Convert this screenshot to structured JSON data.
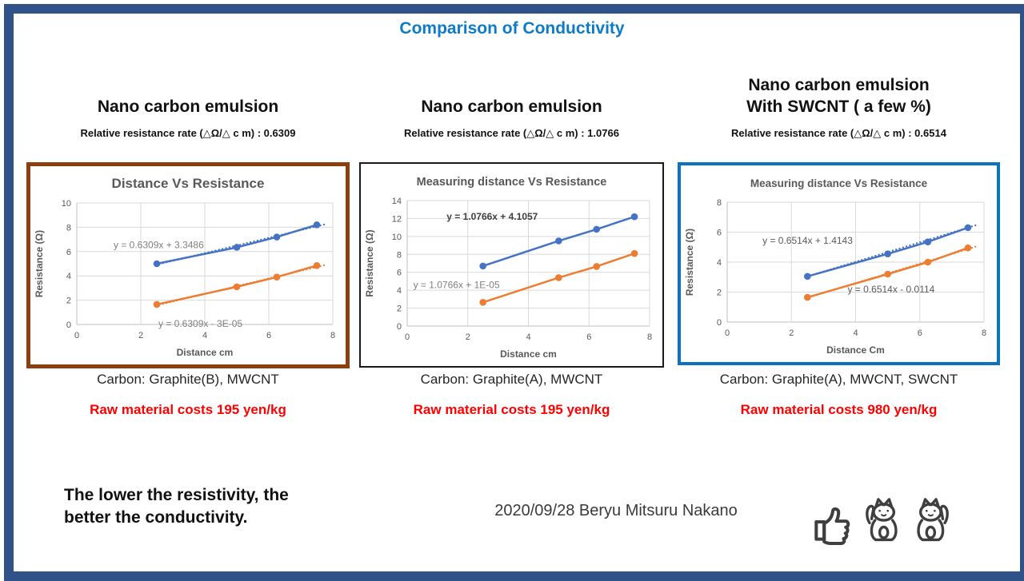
{
  "slide": {
    "title": "Comparison of Conductivity",
    "title_color": "#0D7BC7",
    "frame_color": "#2F5288"
  },
  "columns": [
    {
      "heading_line1": "Nano carbon emulsion",
      "heading_line2": "",
      "subtitle": "Relative resistance rate (△Ω/△ c m) : 0.6309",
      "carbon": "Carbon: Graphite(B), MWCNT",
      "cost": "Raw material costs 195 yen/kg",
      "box_border_color": "#8D3E0E"
    },
    {
      "heading_line1": "Nano carbon emulsion",
      "heading_line2": "",
      "subtitle": "Relative resistance rate (△Ω/△ c m) : 1.0766",
      "carbon": "Carbon: Graphite(A), MWCNT",
      "cost": "Raw material costs 195 yen/kg",
      "box_border_color": "#1A1A1A"
    },
    {
      "heading_line1": "Nano carbon emulsion",
      "heading_line2": "With SWCNT ( a few %)",
      "subtitle": "Relative resistance rate (△Ω/△ c m) : 0.6514",
      "carbon": "Carbon: Graphite(A), MWCNT, SWCNT",
      "cost": "Raw material costs 980 yen/kg",
      "box_border_color": "#0B72BF"
    }
  ],
  "chart_data": [
    {
      "type": "line",
      "title": "Distance Vs Resistance",
      "title_size": 17,
      "xlabel": "Distance cm",
      "ylabel": "Resistance (Ω)",
      "xlim": [
        0,
        8
      ],
      "ylim": [
        0,
        10
      ],
      "xticks": [
        0,
        2,
        4,
        6,
        8
      ],
      "yticks": [
        0,
        2,
        4,
        6,
        8,
        10
      ],
      "grid": true,
      "legend": "none",
      "series": [
        {
          "name": "upper",
          "color": "#4472C4",
          "x": [
            2.5,
            5,
            6.25,
            7.5
          ],
          "y": [
            5.0,
            6.35,
            7.2,
            8.2
          ],
          "trend": {
            "slope": 0.6309,
            "intercept": 3.3486,
            "style": "dotted"
          }
        },
        {
          "name": "lower",
          "color": "#ED7D31",
          "x": [
            2.5,
            5,
            6.25,
            7.5
          ],
          "y": [
            1.65,
            3.1,
            3.9,
            4.85
          ],
          "trend": {
            "slope": 0.6309,
            "intercept": -3e-05,
            "style": "dotted"
          }
        }
      ],
      "annotations": [
        {
          "text": "y = 0.6309x + 3.3486",
          "x": 1.15,
          "y": 6.55,
          "color": "#808080",
          "bold": false
        },
        {
          "text": "y = 0.6309x - 3E-05",
          "x": 2.55,
          "y": 0.05,
          "color": "#808080",
          "bold": false
        }
      ]
    },
    {
      "type": "line",
      "title": "Measuring distance Vs Resistance",
      "title_size": 14.5,
      "xlabel": "Distance  cm",
      "ylabel": "Resistance (Ω)",
      "xlim": [
        0,
        8
      ],
      "ylim": [
        0,
        14
      ],
      "xticks": [
        0,
        2,
        4,
        6,
        8
      ],
      "yticks": [
        0,
        2,
        4,
        6,
        8,
        10,
        12,
        14
      ],
      "grid": true,
      "legend": "none",
      "series": [
        {
          "name": "upper",
          "color": "#4472C4",
          "x": [
            2.5,
            5,
            6.25,
            7.5
          ],
          "y": [
            6.7,
            9.5,
            10.8,
            12.2
          ],
          "trend": null
        },
        {
          "name": "lower",
          "color": "#ED7D31",
          "x": [
            2.5,
            5,
            6.25,
            7.5
          ],
          "y": [
            2.65,
            5.4,
            6.65,
            8.1
          ],
          "trend": null
        }
      ],
      "annotations": [
        {
          "text": "y = 1.0766x + 4.1057",
          "x": 1.3,
          "y": 12.2,
          "color": "#404040",
          "bold": true
        },
        {
          "text": "y = 1.0766x + 1E-05",
          "x": 0.2,
          "y": 4.6,
          "color": "#808080",
          "bold": false
        }
      ]
    },
    {
      "type": "line",
      "title": "Measuring distance Vs Resistance",
      "title_size": 13.5,
      "xlabel": "Distance Cm",
      "ylabel": "Resistance (Ω)",
      "xlim": [
        0,
        8
      ],
      "ylim": [
        0,
        8
      ],
      "xticks": [
        0,
        2,
        4,
        6,
        8
      ],
      "yticks": [
        0,
        2,
        4,
        6,
        8
      ],
      "grid": true,
      "legend": "none",
      "series": [
        {
          "name": "upper",
          "color": "#4472C4",
          "x": [
            2.5,
            5,
            6.25,
            7.5
          ],
          "y": [
            3.05,
            4.55,
            5.35,
            6.3
          ],
          "trend": {
            "slope": 0.6514,
            "intercept": 1.4143,
            "style": "dotted"
          }
        },
        {
          "name": "lower",
          "color": "#ED7D31",
          "x": [
            2.5,
            5,
            6.25,
            7.5
          ],
          "y": [
            1.65,
            3.2,
            4.0,
            4.95
          ],
          "trend": {
            "slope": 0.6514,
            "intercept": -0.0114,
            "style": "dotted"
          }
        }
      ],
      "annotations": [
        {
          "text": "y = 0.6514x + 1.4143",
          "x": 1.1,
          "y": 5.45,
          "color": "#595959",
          "bold": false
        },
        {
          "text": "y = 0.6514x - 0.0114",
          "x": 3.75,
          "y": 2.2,
          "color": "#595959",
          "bold": false
        }
      ]
    }
  ],
  "footer": {
    "note_line1": "The lower the resistivity, the",
    "note_line2": "better the conductivity.",
    "credit": "2020/09/28 Beryu Mitsuru Nakano",
    "icons": [
      "thumbs-up-icon",
      "maneki-neko-icon",
      "maneki-neko-icon"
    ]
  }
}
